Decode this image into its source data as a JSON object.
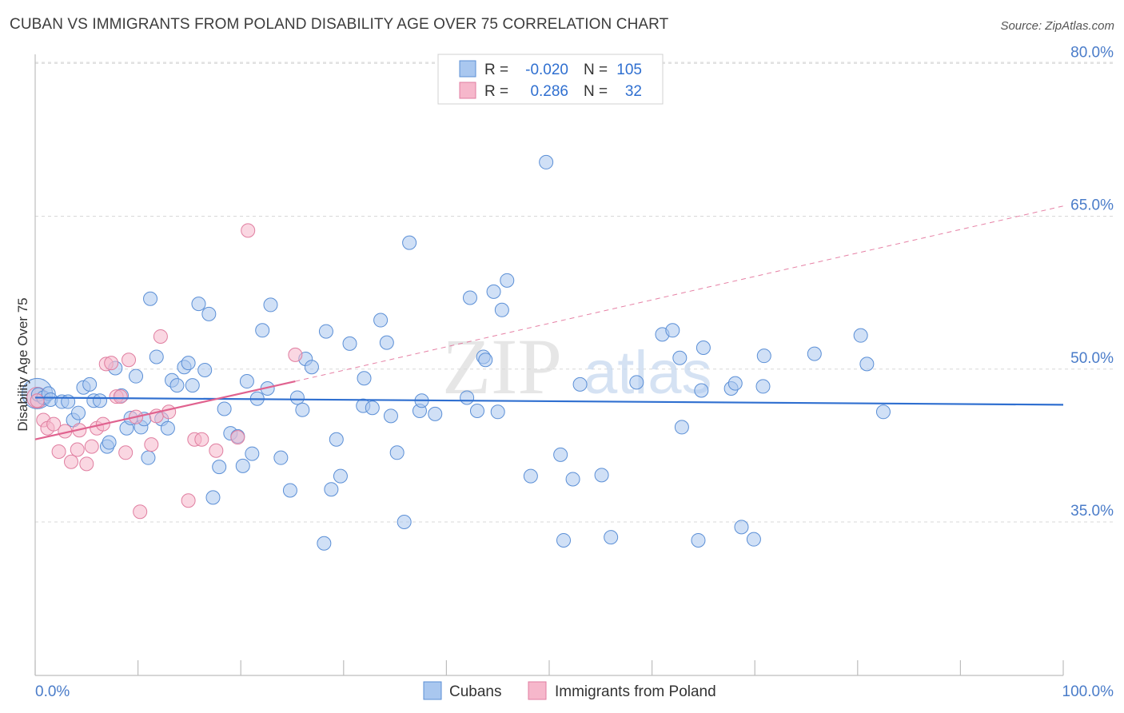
{
  "title": "CUBAN VS IMMIGRANTS FROM POLAND DISABILITY AGE OVER 75 CORRELATION CHART",
  "source": "Source: ZipAtlas.com",
  "watermark": {
    "zip": "ZIP",
    "atlas": "atlas"
  },
  "colors": {
    "cubans_fill": "#a9c7ef",
    "cubans_stroke": "#5b8fd6",
    "cubans_line": "#2f6fd0",
    "poland_fill": "#f6b7cb",
    "poland_stroke": "#e07ea0",
    "poland_line": "#e0628f",
    "grid": "#d8d8d8",
    "axis_label": "#4a7cc9"
  },
  "legend_top": {
    "rows": [
      {
        "r_label": "R =",
        "r_value": "-0.020",
        "n_label": "N =",
        "n_value": "105"
      },
      {
        "r_label": "R =",
        "r_value": "0.286",
        "n_label": "N =",
        "n_value": "32"
      }
    ]
  },
  "legend_bottom": [
    "Cubans",
    "Immigrants from Poland"
  ],
  "chart_data": {
    "type": "scatter",
    "title": "CUBAN VS IMMIGRANTS FROM POLAND DISABILITY AGE OVER 75 CORRELATION CHART",
    "xlabel": "",
    "ylabel": "Disability Age Over 75",
    "xlim": [
      0,
      100
    ],
    "ylim": [
      20,
      82
    ],
    "x_tick_labels": [
      "0.0%",
      "100.0%"
    ],
    "y_ticks": [
      35,
      50,
      65,
      80
    ],
    "y_tick_labels": [
      "35.0%",
      "50.0%",
      "65.0%",
      "80.0%"
    ],
    "grid": true,
    "legend_position": "top-center",
    "series": [
      {
        "name": "Cubans",
        "R": -0.02,
        "N": 105,
        "trend": {
          "x": [
            0,
            100
          ],
          "y": [
            47.2,
            46.5
          ]
        },
        "points": [
          [
            0.3,
            47.5
          ],
          [
            0.8,
            47.2
          ],
          [
            1.3,
            47.6
          ],
          [
            1.5,
            47.0
          ],
          [
            2.6,
            46.8
          ],
          [
            3.2,
            46.8
          ],
          [
            3.7,
            45.0
          ],
          [
            4.2,
            45.7
          ],
          [
            4.7,
            48.2
          ],
          [
            5.3,
            48.5
          ],
          [
            5.7,
            46.9
          ],
          [
            6.3,
            46.9
          ],
          [
            7.0,
            42.4
          ],
          [
            7.2,
            42.8
          ],
          [
            7.8,
            50.1
          ],
          [
            8.4,
            47.4
          ],
          [
            8.9,
            44.2
          ],
          [
            9.3,
            45.2
          ],
          [
            9.8,
            49.3
          ],
          [
            10.3,
            44.3
          ],
          [
            10.6,
            45.1
          ],
          [
            11.0,
            41.3
          ],
          [
            11.2,
            56.9
          ],
          [
            11.8,
            51.2
          ],
          [
            12.3,
            45.1
          ],
          [
            12.9,
            44.2
          ],
          [
            13.3,
            48.9
          ],
          [
            13.8,
            48.4
          ],
          [
            14.5,
            50.2
          ],
          [
            14.9,
            50.6
          ],
          [
            15.3,
            48.4
          ],
          [
            15.9,
            56.4
          ],
          [
            16.5,
            49.9
          ],
          [
            16.9,
            55.4
          ],
          [
            17.3,
            37.4
          ],
          [
            17.9,
            40.4
          ],
          [
            18.4,
            46.1
          ],
          [
            19.0,
            43.7
          ],
          [
            19.7,
            43.4
          ],
          [
            20.2,
            40.5
          ],
          [
            20.6,
            48.8
          ],
          [
            21.1,
            41.7
          ],
          [
            21.6,
            47.1
          ],
          [
            22.1,
            53.8
          ],
          [
            22.6,
            48.1
          ],
          [
            22.9,
            56.3
          ],
          [
            23.9,
            41.3
          ],
          [
            24.8,
            38.1
          ],
          [
            25.5,
            47.2
          ],
          [
            26.0,
            46.0
          ],
          [
            26.3,
            51.0
          ],
          [
            26.9,
            50.2
          ],
          [
            28.1,
            32.9
          ],
          [
            28.3,
            53.7
          ],
          [
            28.8,
            38.2
          ],
          [
            29.3,
            43.1
          ],
          [
            29.7,
            39.5
          ],
          [
            30.6,
            52.5
          ],
          [
            32.0,
            49.1
          ],
          [
            31.9,
            46.4
          ],
          [
            32.8,
            46.2
          ],
          [
            33.6,
            54.8
          ],
          [
            34.2,
            52.6
          ],
          [
            34.6,
            45.4
          ],
          [
            35.2,
            41.8
          ],
          [
            35.9,
            35.0
          ],
          [
            36.4,
            62.4
          ],
          [
            37.4,
            45.9
          ],
          [
            37.6,
            46.9
          ],
          [
            38.9,
            45.6
          ],
          [
            42.0,
            47.2
          ],
          [
            42.3,
            57.0
          ],
          [
            43.0,
            45.9
          ],
          [
            43.6,
            51.2
          ],
          [
            43.8,
            50.9
          ],
          [
            44.6,
            57.6
          ],
          [
            45.0,
            45.8
          ],
          [
            45.4,
            55.8
          ],
          [
            45.9,
            58.7
          ],
          [
            48.2,
            39.5
          ],
          [
            49.7,
            70.3
          ],
          [
            51.1,
            41.6
          ],
          [
            51.4,
            33.2
          ],
          [
            52.3,
            39.2
          ],
          [
            53.0,
            48.5
          ],
          [
            55.1,
            39.6
          ],
          [
            56.0,
            33.5
          ],
          [
            58.5,
            48.7
          ],
          [
            61.0,
            53.4
          ],
          [
            62.0,
            53.8
          ],
          [
            62.7,
            51.1
          ],
          [
            62.9,
            44.3
          ],
          [
            64.5,
            33.2
          ],
          [
            64.8,
            47.9
          ],
          [
            65.0,
            52.1
          ],
          [
            67.7,
            48.1
          ],
          [
            68.1,
            48.6
          ],
          [
            68.7,
            34.5
          ],
          [
            69.9,
            33.3
          ],
          [
            70.8,
            48.3
          ],
          [
            70.9,
            51.3
          ],
          [
            75.8,
            51.5
          ],
          [
            80.3,
            53.3
          ],
          [
            80.9,
            50.5
          ],
          [
            82.5,
            45.8
          ]
        ]
      },
      {
        "name": "Immigrants from Poland",
        "R": 0.286,
        "N": 32,
        "trend": {
          "x": [
            0,
            25.3
          ],
          "y": [
            43.1,
            48.8
          ]
        },
        "trend_dashed": {
          "x": [
            25.3,
            100
          ],
          "y": [
            48.8,
            66.0
          ]
        },
        "points": [
          [
            0.2,
            46.9
          ],
          [
            0.8,
            45.0
          ],
          [
            1.2,
            44.2
          ],
          [
            1.8,
            44.6
          ],
          [
            2.3,
            41.9
          ],
          [
            2.9,
            43.9
          ],
          [
            3.5,
            40.9
          ],
          [
            4.1,
            42.1
          ],
          [
            4.3,
            44.0
          ],
          [
            5.0,
            40.7
          ],
          [
            5.5,
            42.4
          ],
          [
            6.0,
            44.2
          ],
          [
            6.6,
            44.6
          ],
          [
            6.9,
            50.5
          ],
          [
            7.4,
            50.6
          ],
          [
            7.9,
            47.3
          ],
          [
            8.3,
            47.3
          ],
          [
            8.8,
            41.8
          ],
          [
            9.1,
            50.9
          ],
          [
            9.8,
            45.3
          ],
          [
            10.2,
            36.0
          ],
          [
            11.3,
            42.6
          ],
          [
            11.8,
            45.4
          ],
          [
            12.2,
            53.2
          ],
          [
            13.0,
            45.8
          ],
          [
            14.9,
            37.1
          ],
          [
            15.5,
            43.1
          ],
          [
            16.2,
            43.1
          ],
          [
            17.6,
            42.0
          ],
          [
            19.7,
            43.3
          ],
          [
            20.7,
            63.6
          ],
          [
            25.3,
            51.4
          ]
        ]
      }
    ]
  }
}
